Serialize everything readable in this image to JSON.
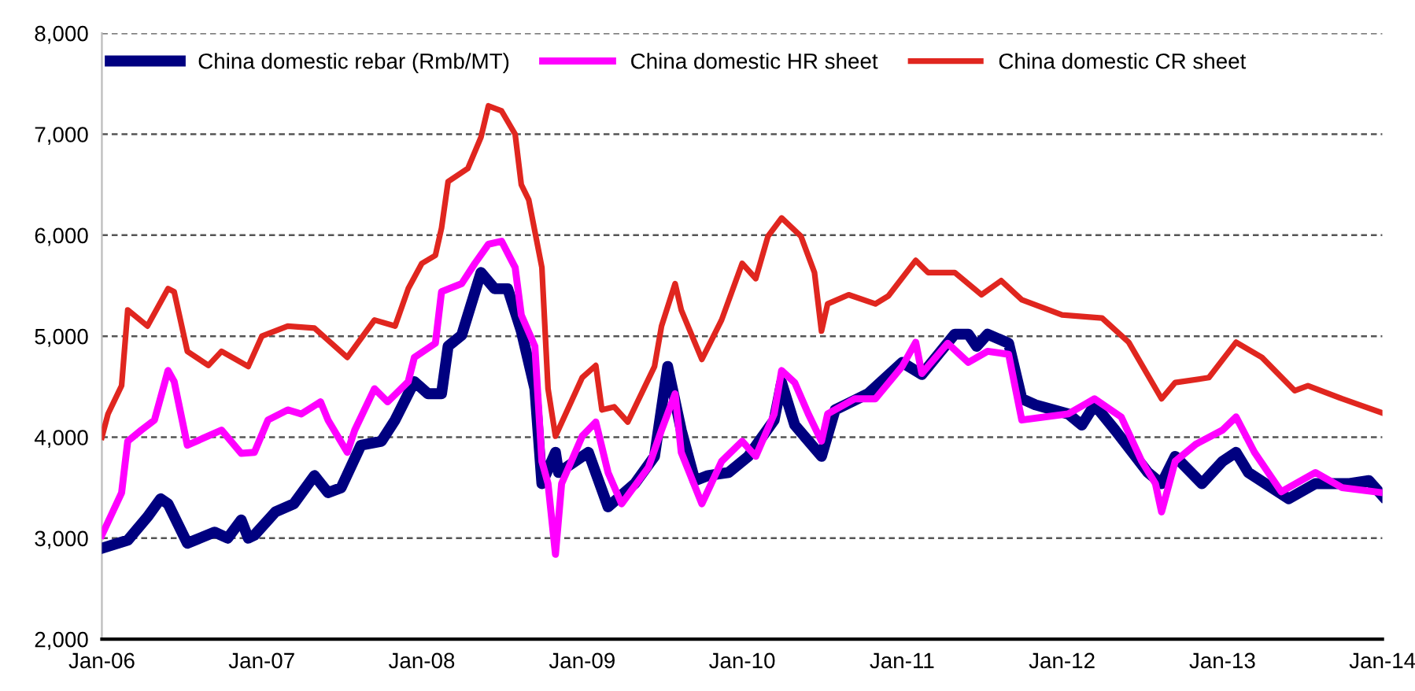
{
  "chart_data": {
    "type": "line",
    "xlim": [
      "2006-01-01",
      "2014-01-01"
    ],
    "xticks": [
      {
        "value": "2006-01-01",
        "label": "Jan-06"
      },
      {
        "value": "2007-01-01",
        "label": "Jan-07"
      },
      {
        "value": "2008-01-01",
        "label": "Jan-08"
      },
      {
        "value": "2009-01-01",
        "label": "Jan-09"
      },
      {
        "value": "2010-01-01",
        "label": "Jan-10"
      },
      {
        "value": "2011-01-01",
        "label": "Jan-11"
      },
      {
        "value": "2012-01-01",
        "label": "Jan-12"
      },
      {
        "value": "2013-01-01",
        "label": "Jan-13"
      },
      {
        "value": "2014-01-01",
        "label": "Jan-14"
      }
    ],
    "ylim": [
      2000,
      8000
    ],
    "yticks": [
      {
        "value": 2000,
        "label": "2,000"
      },
      {
        "value": 3000,
        "label": "3,000"
      },
      {
        "value": 4000,
        "label": "4,000"
      },
      {
        "value": 5000,
        "label": "5,000"
      },
      {
        "value": 6000,
        "label": "6,000"
      },
      {
        "value": 7000,
        "label": "7,000"
      },
      {
        "value": 8000,
        "label": "8,000"
      }
    ],
    "grid": "y",
    "legend": "top",
    "line_style": "solid",
    "marker": "none",
    "series": [
      {
        "name": "China domestic rebar (Rmb/MT)",
        "color": "#000080",
        "x": [
          "2006-01-01",
          "2006-03-01",
          "2006-04-15",
          "2006-05-15",
          "2006-06-01",
          "2006-07-15",
          "2006-09-15",
          "2006-10-15",
          "2006-11-15",
          "2006-12-01",
          "2006-12-15",
          "2007-02-01",
          "2007-03-15",
          "2007-05-01",
          "2007-06-01",
          "2007-07-01",
          "2007-08-15",
          "2007-10-01",
          "2007-11-01",
          "2007-12-15",
          "2008-01-15",
          "2008-02-15",
          "2008-03-01",
          "2008-04-01",
          "2008-05-15",
          "2008-06-15",
          "2008-07-15",
          "2008-08-15",
          "2008-09-15",
          "2008-10-01",
          "2008-11-01",
          "2008-11-08",
          "2009-01-15",
          "2009-03-01",
          "2009-05-01",
          "2009-06-15",
          "2009-07-15",
          "2009-08-15",
          "2009-09-15",
          "2009-10-15",
          "2009-12-01",
          "2010-01-15",
          "2010-03-15",
          "2010-04-01",
          "2010-05-01",
          "2010-07-01",
          "2010-08-01",
          "2010-10-15",
          "2011-01-01",
          "2011-02-15",
          "2011-05-01",
          "2011-06-01",
          "2011-06-20",
          "2011-07-15",
          "2011-09-01",
          "2011-10-01",
          "2011-11-01",
          "2012-01-15",
          "2012-02-15",
          "2012-03-15",
          "2012-05-01",
          "2012-07-15",
          "2012-08-15",
          "2012-09-15",
          "2012-11-15",
          "2013-01-01",
          "2013-02-01",
          "2013-03-01",
          "2013-06-01",
          "2013-08-01",
          "2013-10-15",
          "2013-12-01",
          "2014-01-01"
        ],
        "values": [
          2900,
          2980,
          3210,
          3390,
          3340,
          2950,
          3060,
          3000,
          3180,
          3000,
          3030,
          3260,
          3340,
          3620,
          3450,
          3500,
          3920,
          3960,
          4170,
          4550,
          4430,
          4430,
          4900,
          5010,
          5630,
          5470,
          5470,
          5050,
          4480,
          3540,
          3850,
          3650,
          3850,
          3310,
          3540,
          3810,
          4700,
          4070,
          3570,
          3620,
          3650,
          3810,
          4170,
          4540,
          4120,
          3810,
          4270,
          4430,
          4740,
          4620,
          5020,
          5020,
          4900,
          5020,
          4930,
          4380,
          4320,
          4230,
          4120,
          4320,
          4070,
          3650,
          3540,
          3810,
          3540,
          3760,
          3850,
          3650,
          3390,
          3540,
          3540,
          3570,
          3420
        ]
      },
      {
        "name": "China domestic HR sheet",
        "color": "#ff00ff",
        "x": [
          "2006-01-01",
          "2006-02-15",
          "2006-03-01",
          "2006-04-01",
          "2006-05-01",
          "2006-06-01",
          "2006-06-15",
          "2006-07-15",
          "2006-10-01",
          "2006-11-15",
          "2006-12-15",
          "2007-01-15",
          "2007-03-01",
          "2007-04-01",
          "2007-05-15",
          "2007-06-01",
          "2007-07-15",
          "2007-08-01",
          "2007-09-15",
          "2007-10-15",
          "2007-12-01",
          "2007-12-15",
          "2008-02-01",
          "2008-02-15",
          "2008-04-01",
          "2008-05-01",
          "2008-06-01",
          "2008-07-01",
          "2008-08-01",
          "2008-08-15",
          "2008-09-15",
          "2008-10-01",
          "2008-10-15",
          "2008-11-01",
          "2008-11-15",
          "2009-01-01",
          "2009-02-01",
          "2009-03-01",
          "2009-04-01",
          "2009-06-01",
          "2009-07-01",
          "2009-08-01",
          "2009-08-15",
          "2009-10-01",
          "2009-11-15",
          "2010-01-01",
          "2010-02-01",
          "2010-03-15",
          "2010-04-01",
          "2010-05-01",
          "2010-06-01",
          "2010-07-01",
          "2010-07-15",
          "2010-09-15",
          "2010-11-01",
          "2011-01-01",
          "2011-02-01",
          "2011-02-15",
          "2011-04-15",
          "2011-06-01",
          "2011-07-15",
          "2011-09-01",
          "2011-10-01",
          "2012-01-15",
          "2012-03-15",
          "2012-05-15",
          "2012-07-01",
          "2012-08-01",
          "2012-08-15",
          "2012-09-15",
          "2012-11-01",
          "2013-01-01",
          "2013-02-01",
          "2013-03-15",
          "2013-05-15",
          "2013-08-01",
          "2013-10-01",
          "2014-01-01"
        ],
        "values": [
          3030,
          3450,
          3960,
          4070,
          4170,
          4660,
          4550,
          3920,
          4070,
          3840,
          3850,
          4170,
          4270,
          4230,
          4350,
          4170,
          3850,
          4070,
          4480,
          4350,
          4550,
          4790,
          4930,
          5440,
          5520,
          5720,
          5910,
          5940,
          5680,
          5210,
          4900,
          3760,
          3540,
          2840,
          3540,
          4010,
          4150,
          3650,
          3340,
          3700,
          4070,
          4430,
          3850,
          3340,
          3760,
          3960,
          3810,
          4230,
          4660,
          4540,
          4230,
          3960,
          4230,
          4380,
          4380,
          4700,
          4940,
          4630,
          4930,
          4740,
          4850,
          4820,
          4170,
          4230,
          4380,
          4200,
          3760,
          3540,
          3260,
          3760,
          3930,
          4070,
          4200,
          3850,
          3460,
          3650,
          3500,
          3450
        ]
      },
      {
        "name": "China domestic CR sheet",
        "color": "#e0261f",
        "x": [
          "2006-01-01",
          "2006-01-15",
          "2006-02-15",
          "2006-03-01",
          "2006-04-15",
          "2006-06-01",
          "2006-06-15",
          "2006-07-15",
          "2006-09-01",
          "2006-10-01",
          "2006-12-01",
          "2007-01-01",
          "2007-03-01",
          "2007-05-01",
          "2007-07-15",
          "2007-09-15",
          "2007-11-01",
          "2007-12-01",
          "2008-01-01",
          "2008-02-01",
          "2008-02-15",
          "2008-03-01",
          "2008-04-15",
          "2008-05-15",
          "2008-06-01",
          "2008-07-01",
          "2008-08-01",
          "2008-08-15",
          "2008-09-01",
          "2008-10-01",
          "2008-10-15",
          "2008-11-01",
          "2009-01-01",
          "2009-02-01",
          "2009-02-15",
          "2009-03-15",
          "2009-04-15",
          "2009-06-15",
          "2009-07-01",
          "2009-08-01",
          "2009-08-15",
          "2009-10-01",
          "2009-11-15",
          "2010-01-01",
          "2010-02-01",
          "2010-03-01",
          "2010-04-01",
          "2010-05-15",
          "2010-06-15",
          "2010-07-01",
          "2010-07-15",
          "2010-09-01",
          "2010-11-01",
          "2010-12-01",
          "2011-02-01",
          "2011-03-01",
          "2011-05-01",
          "2011-07-01",
          "2011-08-15",
          "2011-10-01",
          "2012-01-01",
          "2012-04-01",
          "2012-06-01",
          "2012-08-15",
          "2012-09-15",
          "2012-12-01",
          "2013-02-01",
          "2013-04-01",
          "2013-06-15",
          "2013-07-15",
          "2013-10-01",
          "2014-01-01"
        ],
        "values": [
          4000,
          4230,
          4510,
          5260,
          5100,
          5470,
          5440,
          4850,
          4710,
          4850,
          4700,
          5000,
          5100,
          5080,
          4790,
          5160,
          5100,
          5470,
          5720,
          5800,
          6070,
          6530,
          6660,
          6970,
          7280,
          7230,
          7000,
          6500,
          6350,
          5680,
          4480,
          4010,
          4590,
          4710,
          4270,
          4300,
          4150,
          4700,
          5100,
          5520,
          5260,
          4770,
          5160,
          5720,
          5570,
          5990,
          6170,
          5990,
          5630,
          5050,
          5320,
          5410,
          5320,
          5400,
          5750,
          5630,
          5630,
          5410,
          5550,
          5360,
          5210,
          5180,
          4940,
          4380,
          4540,
          4590,
          4940,
          4790,
          4460,
          4510,
          4380,
          4240
        ]
      }
    ]
  }
}
